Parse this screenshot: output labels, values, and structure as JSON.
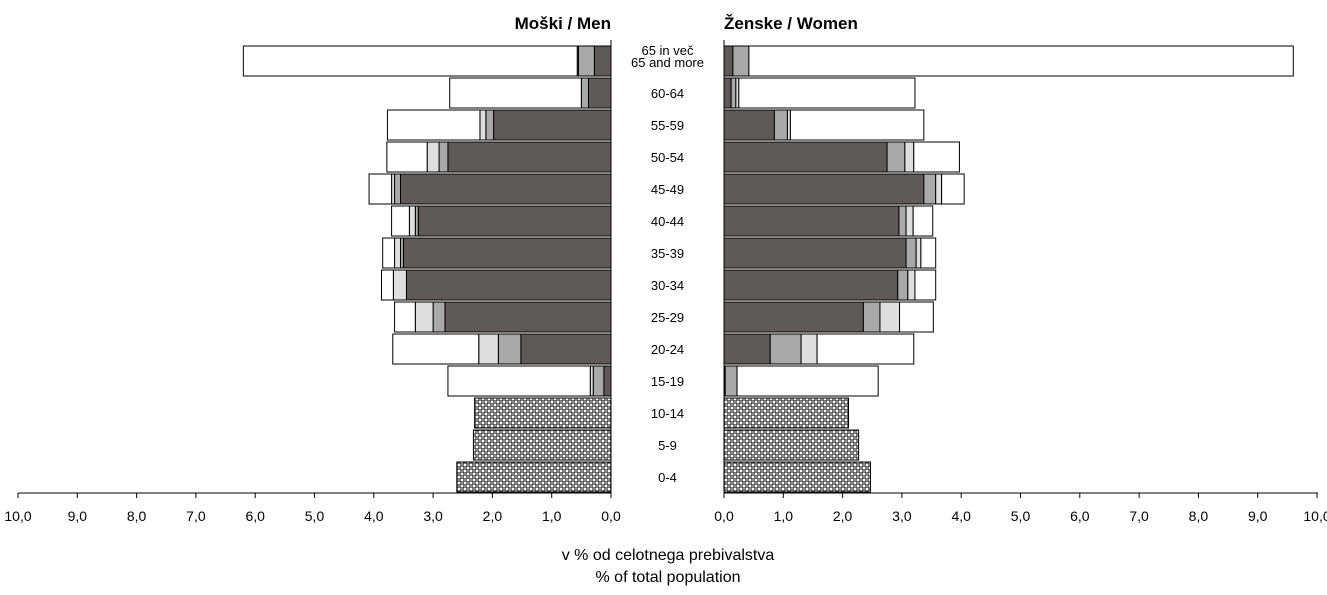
{
  "chart_data": {
    "type": "bar",
    "title_left": "Moški / Men",
    "title_right": "Ženske / Women",
    "xlabel_line1": "v % od celotnega prebivalstva",
    "xlabel_line2": "% of total population",
    "xlim": [
      0,
      10
    ],
    "xticks": [
      "0,0",
      "1,0",
      "2,0",
      "3,0",
      "4,0",
      "5,0",
      "6,0",
      "7,0",
      "8,0",
      "9,0",
      "10,0"
    ],
    "categories": [
      "0-4",
      "5-9",
      "10-14",
      "15-19",
      "20-24",
      "25-29",
      "30-34",
      "35-39",
      "40-44",
      "45-49",
      "50-54",
      "55-59",
      "60-64",
      "65 in več|65 and more"
    ],
    "segment_colors": [
      "#5f5a5a",
      "#a9a9a9",
      "#dedede",
      "#ffffff"
    ],
    "child_pattern_color": "#4a4a4a",
    "men": [
      [
        2.6
      ],
      [
        2.32
      ],
      [
        2.3
      ],
      [
        0.12,
        0.18,
        0.05,
        2.4
      ],
      [
        1.52,
        0.38,
        0.33,
        1.45
      ],
      [
        2.8,
        0.2,
        0.3,
        0.35
      ],
      [
        3.45,
        0.0,
        0.22,
        0.2
      ],
      [
        3.5,
        0.05,
        0.1,
        0.2
      ],
      [
        3.25,
        0.05,
        0.1,
        0.3
      ],
      [
        3.55,
        0.1,
        0.05,
        0.38
      ],
      [
        2.75,
        0.15,
        0.2,
        0.68
      ],
      [
        1.98,
        0.13,
        0.1,
        1.56
      ],
      [
        0.38,
        0.12,
        0.0,
        2.22
      ],
      [
        0.28,
        0.27,
        0.02,
        5.63
      ]
    ],
    "women": [
      [
        2.47
      ],
      [
        2.27
      ],
      [
        2.1
      ],
      [
        0.02,
        0.2,
        0.0,
        2.38
      ],
      [
        0.78,
        0.52,
        0.27,
        1.63
      ],
      [
        2.35,
        0.28,
        0.33,
        0.57
      ],
      [
        2.93,
        0.17,
        0.12,
        0.35
      ],
      [
        3.07,
        0.17,
        0.08,
        0.25
      ],
      [
        2.95,
        0.12,
        0.12,
        0.33
      ],
      [
        3.37,
        0.2,
        0.1,
        0.38
      ],
      [
        2.75,
        0.3,
        0.15,
        0.77
      ],
      [
        0.85,
        0.22,
        0.05,
        2.25
      ],
      [
        0.12,
        0.08,
        0.05,
        2.97
      ],
      [
        0.15,
        0.27,
        0.0,
        9.18
      ]
    ]
  }
}
